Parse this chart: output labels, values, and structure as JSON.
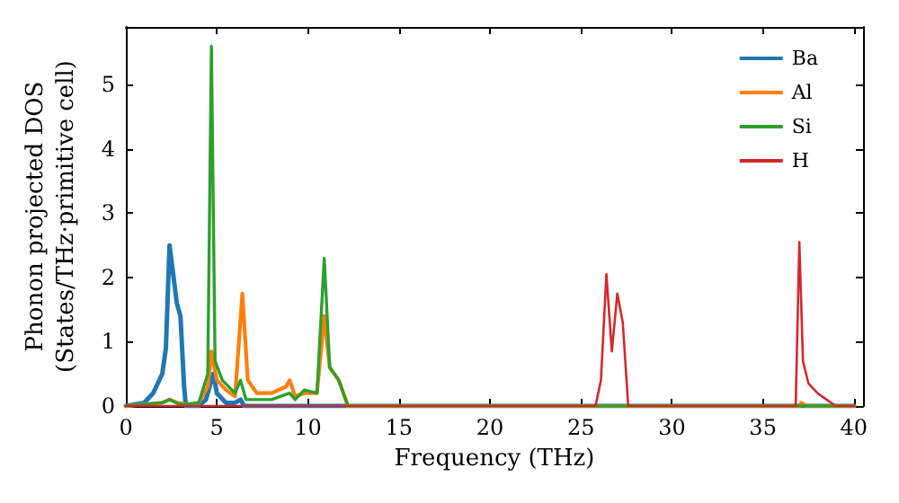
{
  "chart_data": {
    "type": "line",
    "xlabel": "Frequency (THz)",
    "ylabel": "Phonon projected DOS\n(States/THz·primitive cell)",
    "xlim": [
      0,
      40.5
    ],
    "xticks": [
      0,
      5,
      10,
      15,
      20,
      25,
      30,
      35,
      40
    ],
    "ylim": [
      0,
      5.9
    ],
    "yticks": [
      0,
      1,
      2,
      3,
      4,
      5
    ],
    "grid": false,
    "legend": "top right",
    "marker": "none",
    "line_style": "solid",
    "series": [
      {
        "name": "Ba",
        "color": "#1f77b4",
        "x": [
          0,
          1,
          1.5,
          2,
          2.2,
          2.4,
          2.8,
          3.0,
          3.2,
          3.3,
          4,
          4.4,
          4.8,
          5.0,
          5.5,
          6,
          6.3,
          6.5,
          12,
          40
        ],
        "values": [
          0,
          0.05,
          0.2,
          0.5,
          0.9,
          2.5,
          1.6,
          1.4,
          0.3,
          0,
          0,
          0.1,
          0.5,
          0.2,
          0.05,
          0.05,
          0.1,
          0,
          0,
          0
        ]
      },
      {
        "name": "Al",
        "color": "#ff7f0e",
        "x": [
          0,
          2,
          2.4,
          2.8,
          3.5,
          4,
          4.5,
          4.7,
          5.0,
          5.5,
          6,
          6.4,
          6.7,
          7.2,
          8,
          8.8,
          9.0,
          9.3,
          9.8,
          10.5,
          10.9,
          11.2,
          11.7,
          12.2,
          37,
          37.1,
          37.4,
          40
        ],
        "values": [
          0,
          0.05,
          0.1,
          0.05,
          0.02,
          0.05,
          0.3,
          0.85,
          0.4,
          0.25,
          0.15,
          1.75,
          0.4,
          0.2,
          0.2,
          0.3,
          0.4,
          0.15,
          0.2,
          0.2,
          1.4,
          0.6,
          0.4,
          0,
          0,
          0.05,
          0,
          0
        ]
      },
      {
        "name": "Si",
        "color": "#2ca02c",
        "x": [
          0,
          2,
          2.4,
          3,
          4,
          4.5,
          4.7,
          4.9,
          5.3,
          6,
          6.3,
          6.6,
          7,
          8,
          9.0,
          9.3,
          9.8,
          10.5,
          10.9,
          11.2,
          11.7,
          12.2,
          40
        ],
        "values": [
          0,
          0.05,
          0.1,
          0.02,
          0.05,
          0.5,
          5.6,
          0.7,
          0.4,
          0.2,
          0.4,
          0.1,
          0.1,
          0.1,
          0.2,
          0.1,
          0.25,
          0.2,
          2.3,
          0.6,
          0.4,
          0,
          0
        ]
      },
      {
        "name": "H",
        "color": "#d62728",
        "x": [
          0,
          25.8,
          26.1,
          26.4,
          26.7,
          27.0,
          27.3,
          27.6,
          36.8,
          37.0,
          37.2,
          37.5,
          38,
          38.5,
          39,
          40
        ],
        "values": [
          0,
          0,
          0.4,
          2.05,
          0.85,
          1.75,
          1.3,
          0,
          0,
          2.55,
          0.7,
          0.35,
          0.2,
          0.1,
          0,
          0
        ]
      }
    ]
  }
}
